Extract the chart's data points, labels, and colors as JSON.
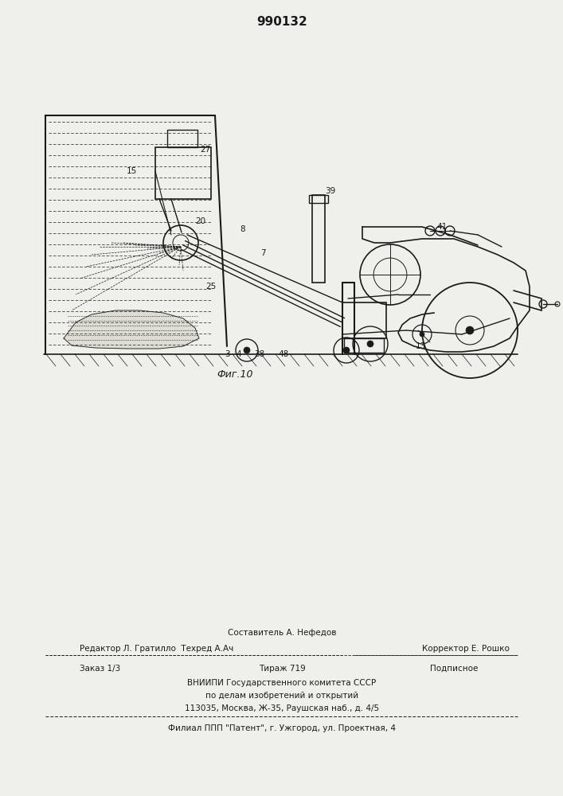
{
  "title": "990132",
  "fig_label": "Фиг.10",
  "footer_lines": [
    "Составитель А. Нефедов",
    "Редактор Л. Гратилло  Техред А.Ач",
    "Корректор Е. Рошко",
    "Заказ 1/3",
    "Тираж 719",
    "Подписное",
    "ВНИИПИ Государственного комитета СССР",
    "по делам изобретений и открытий",
    "113035, Москва, Ж-35, Раушская наб., д. 4/5",
    "Филиал ППП \"Патент\", г. Ужгород, ул. Проектная, 4"
  ],
  "bg_color": "#f0f0eb",
  "line_color": "#1a1a1a"
}
